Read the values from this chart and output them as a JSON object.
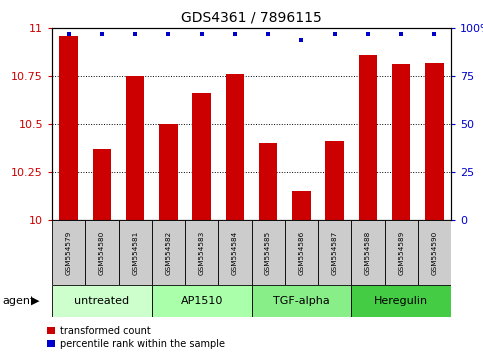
{
  "title": "GDS4361 / 7896115",
  "samples": [
    "GSM554579",
    "GSM554580",
    "GSM554581",
    "GSM554582",
    "GSM554583",
    "GSM554584",
    "GSM554585",
    "GSM554586",
    "GSM554587",
    "GSM554588",
    "GSM554589",
    "GSM554590"
  ],
  "bar_values": [
    10.96,
    10.37,
    10.75,
    10.5,
    10.66,
    10.76,
    10.4,
    10.15,
    10.41,
    10.86,
    10.81,
    10.82
  ],
  "percentile_y": [
    10.97,
    10.97,
    10.97,
    10.97,
    10.97,
    10.97,
    10.97,
    10.94,
    10.97,
    10.97,
    10.97,
    10.97
  ],
  "bar_color": "#cc0000",
  "percentile_color": "#0000cc",
  "ylim_left": [
    10.0,
    11.0
  ],
  "yticks_left": [
    10.0,
    10.25,
    10.5,
    10.75,
    11.0
  ],
  "ytick_labels_left": [
    "10",
    "10.25",
    "10.5",
    "10.75",
    "11"
  ],
  "ylim_right": [
    0,
    100
  ],
  "yticks_right": [
    0,
    25,
    50,
    75,
    100
  ],
  "ytick_labels_right": [
    "0",
    "25",
    "50",
    "75",
    "100%"
  ],
  "agents": [
    {
      "label": "untreated",
      "start": 0,
      "end": 3,
      "color": "#ccffcc"
    },
    {
      "label": "AP1510",
      "start": 3,
      "end": 6,
      "color": "#aaffaa"
    },
    {
      "label": "TGF-alpha",
      "start": 6,
      "end": 9,
      "color": "#88ee88"
    },
    {
      "label": "Heregulin",
      "start": 9,
      "end": 12,
      "color": "#44cc44"
    }
  ],
  "agent_label": "agent",
  "legend_bar_label": "transformed count",
  "legend_dot_label": "percentile rank within the sample",
  "bar_width": 0.55,
  "title_fontsize": 10,
  "sample_box_color": "#cccccc",
  "plot_bg_color": "#ffffff",
  "grid_color": "#000000",
  "gridline_style": "dotted"
}
